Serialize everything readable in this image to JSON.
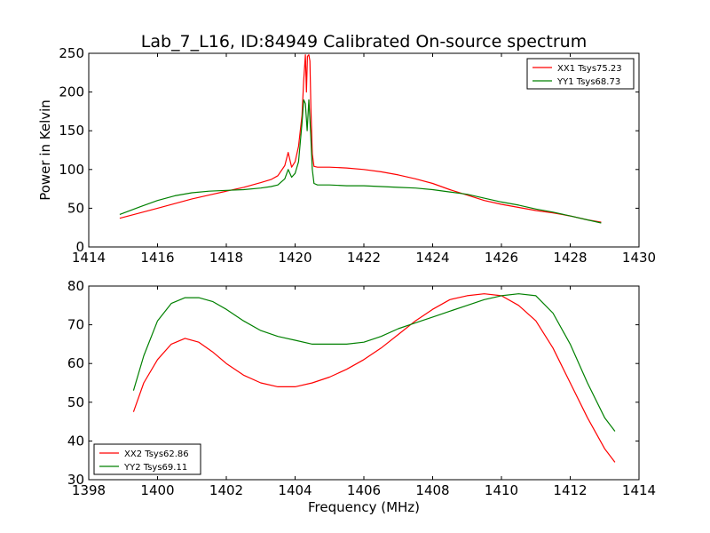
{
  "title": "Lab_7_L16, ID:84949 Calibrated On-source spectrum",
  "xlabel": "Frequency (MHz)",
  "chart_data": [
    {
      "type": "line",
      "title": "Lab_7_L16, ID:84949 Calibrated On-source spectrum",
      "xlabel": "",
      "ylabel": "Power in Kelvin",
      "xlim": [
        1414,
        1430
      ],
      "ylim": [
        0,
        250
      ],
      "xticks": [
        1414,
        1416,
        1418,
        1420,
        1422,
        1424,
        1426,
        1428,
        1430
      ],
      "yticks": [
        0,
        50,
        100,
        150,
        200,
        250
      ],
      "grid": false,
      "legend_position": "top-right",
      "series": [
        {
          "name": "XX1 Tsys75.23",
          "color": "#ff0000",
          "x": [
            1414.9,
            1415.5,
            1416.0,
            1416.5,
            1417.0,
            1417.5,
            1418.0,
            1418.5,
            1419.0,
            1419.3,
            1419.5,
            1419.7,
            1419.8,
            1419.9,
            1420.0,
            1420.1,
            1420.2,
            1420.25,
            1420.3,
            1420.33,
            1420.36,
            1420.4,
            1420.43,
            1420.46,
            1420.5,
            1420.55,
            1420.65,
            1421.0,
            1421.5,
            1422.0,
            1422.5,
            1423.0,
            1423.5,
            1424.0,
            1424.5,
            1425.0,
            1425.5,
            1426.0,
            1426.5,
            1427.0,
            1427.5,
            1428.0,
            1428.5,
            1428.9
          ],
          "values": [
            37,
            44,
            50,
            56,
            62,
            67,
            72,
            77,
            83,
            87,
            92,
            105,
            122,
            103,
            110,
            130,
            170,
            215,
            248,
            200,
            246,
            248,
            240,
            180,
            120,
            104,
            103,
            103,
            102,
            100,
            97,
            93,
            88,
            82,
            74,
            67,
            60,
            55,
            51,
            47,
            44,
            40,
            35,
            32
          ]
        },
        {
          "name": "YY1 Tsys68.73",
          "color": "#008000",
          "x": [
            1414.9,
            1415.5,
            1416.0,
            1416.5,
            1417.0,
            1417.5,
            1418.0,
            1418.5,
            1419.0,
            1419.3,
            1419.5,
            1419.7,
            1419.8,
            1419.9,
            1420.0,
            1420.1,
            1420.2,
            1420.25,
            1420.3,
            1420.35,
            1420.4,
            1420.45,
            1420.5,
            1420.55,
            1420.65,
            1421.0,
            1421.5,
            1422.0,
            1422.5,
            1423.0,
            1423.5,
            1424.0,
            1424.5,
            1425.0,
            1425.5,
            1426.0,
            1426.5,
            1427.0,
            1427.5,
            1428.0,
            1428.5,
            1428.9
          ],
          "values": [
            42,
            52,
            60,
            66,
            70,
            72,
            73,
            74,
            76,
            78,
            80,
            88,
            100,
            90,
            95,
            110,
            160,
            190,
            185,
            150,
            190,
            150,
            100,
            82,
            80,
            80,
            79,
            79,
            78,
            77,
            76,
            74,
            71,
            68,
            63,
            58,
            54,
            49,
            45,
            40,
            35,
            31
          ]
        }
      ]
    },
    {
      "type": "line",
      "title": "",
      "xlabel": "Frequency (MHz)",
      "ylabel": "",
      "xlim": [
        1398,
        1414
      ],
      "ylim": [
        30,
        80
      ],
      "xticks": [
        1398,
        1400,
        1402,
        1404,
        1406,
        1408,
        1410,
        1412,
        1414
      ],
      "yticks": [
        30,
        40,
        50,
        60,
        70,
        80
      ],
      "grid": false,
      "legend_position": "bottom-left",
      "series": [
        {
          "name": "XX2 Tsys62.86",
          "color": "#ff0000",
          "x": [
            1399.3,
            1399.6,
            1400.0,
            1400.4,
            1400.8,
            1401.2,
            1401.6,
            1402.0,
            1402.5,
            1403.0,
            1403.5,
            1404.0,
            1404.5,
            1405.0,
            1405.5,
            1406.0,
            1406.5,
            1407.0,
            1407.5,
            1408.0,
            1408.5,
            1409.0,
            1409.5,
            1410.0,
            1410.5,
            1411.0,
            1411.5,
            1412.0,
            1412.5,
            1413.0,
            1413.3
          ],
          "values": [
            47.5,
            55,
            61,
            65,
            66.5,
            65.5,
            63,
            60,
            57,
            55,
            54,
            54,
            55,
            56.5,
            58.5,
            61,
            64,
            67.5,
            71,
            74,
            76.5,
            77.5,
            78,
            77.5,
            75,
            71,
            64,
            55,
            46,
            38,
            34.5
          ]
        },
        {
          "name": "YY2 Tsys69.11",
          "color": "#008000",
          "x": [
            1399.3,
            1399.6,
            1400.0,
            1400.4,
            1400.8,
            1401.2,
            1401.6,
            1402.0,
            1402.5,
            1403.0,
            1403.5,
            1404.0,
            1404.5,
            1405.0,
            1405.5,
            1406.0,
            1406.5,
            1407.0,
            1407.5,
            1408.0,
            1408.5,
            1409.0,
            1409.5,
            1410.0,
            1410.5,
            1411.0,
            1411.5,
            1412.0,
            1412.5,
            1413.0,
            1413.3
          ],
          "values": [
            53,
            62,
            71,
            75.5,
            77,
            77,
            76,
            74,
            71,
            68.5,
            67,
            66,
            65,
            65,
            65,
            65.5,
            67,
            69,
            70.5,
            72,
            73.5,
            75,
            76.5,
            77.5,
            78,
            77.5,
            73,
            65,
            55,
            46,
            42.5
          ]
        }
      ]
    }
  ]
}
